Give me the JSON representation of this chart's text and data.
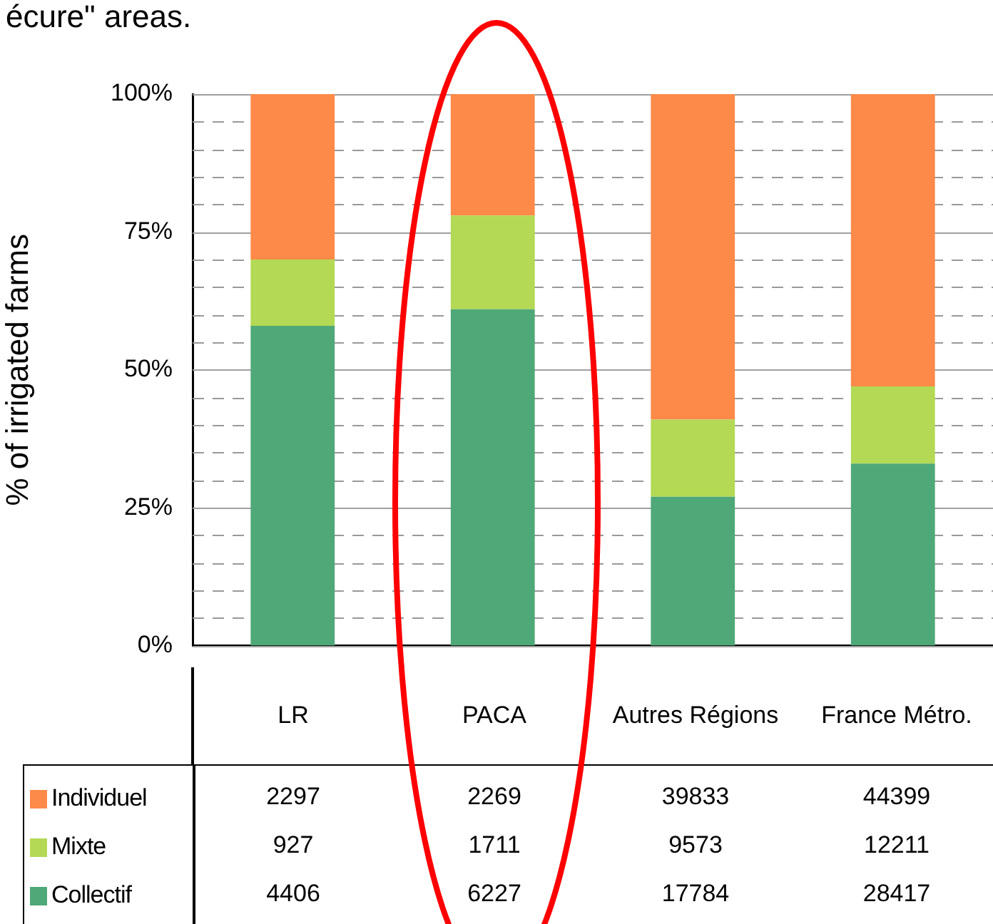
{
  "chart_data": [
    {
      "type": "bar",
      "stacked": true,
      "annotations": [
        "écure\" areas."
      ],
      "ylabel": "% of irrigated farms",
      "categories": [
        "LR",
        "PACA",
        "Autres Régions",
        "France Métro."
      ],
      "series": [
        {
          "name": "Collectif",
          "color": "#4fa878",
          "values": [
            58,
            61,
            27,
            33
          ]
        },
        {
          "name": "Mixte",
          "color": "#b3d955",
          "values": [
            12,
            17,
            14,
            14
          ]
        },
        {
          "name": "Individuel",
          "color": "#fd8a48",
          "values": [
            30,
            22,
            59,
            53
          ]
        }
      ],
      "ylim": [
        0,
        100
      ],
      "yticks": [
        {
          "value": 0,
          "label": "0%"
        },
        {
          "value": 5,
          "label": null
        },
        {
          "value": 10,
          "label": null
        },
        {
          "value": 15,
          "label": null
        },
        {
          "value": 20,
          "label": null
        },
        {
          "value": 25,
          "label": "25%"
        },
        {
          "value": 30,
          "label": null
        },
        {
          "value": 35,
          "label": null
        },
        {
          "value": 40,
          "label": null
        },
        {
          "value": 45,
          "label": null
        },
        {
          "value": 50,
          "label": "50%"
        },
        {
          "value": 55,
          "label": null
        },
        {
          "value": 60,
          "label": null
        },
        {
          "value": 65,
          "label": null
        },
        {
          "value": 70,
          "label": null
        },
        {
          "value": 75,
          "label": "75%"
        },
        {
          "value": 80,
          "label": null
        },
        {
          "value": 85,
          "label": null
        },
        {
          "value": 90,
          "label": null
        },
        {
          "value": 95,
          "label": null
        },
        {
          "value": 100,
          "label": "100%"
        }
      ],
      "grid": "y",
      "legend": "bottom left"
    },
    {
      "type": "other",
      "annotations": [
        "2297",
        "2269",
        "39833",
        "44399",
        "927",
        "1711",
        "9573",
        "12211",
        "4406",
        "6227",
        "17784",
        "28417"
      ]
    }
  ]
}
